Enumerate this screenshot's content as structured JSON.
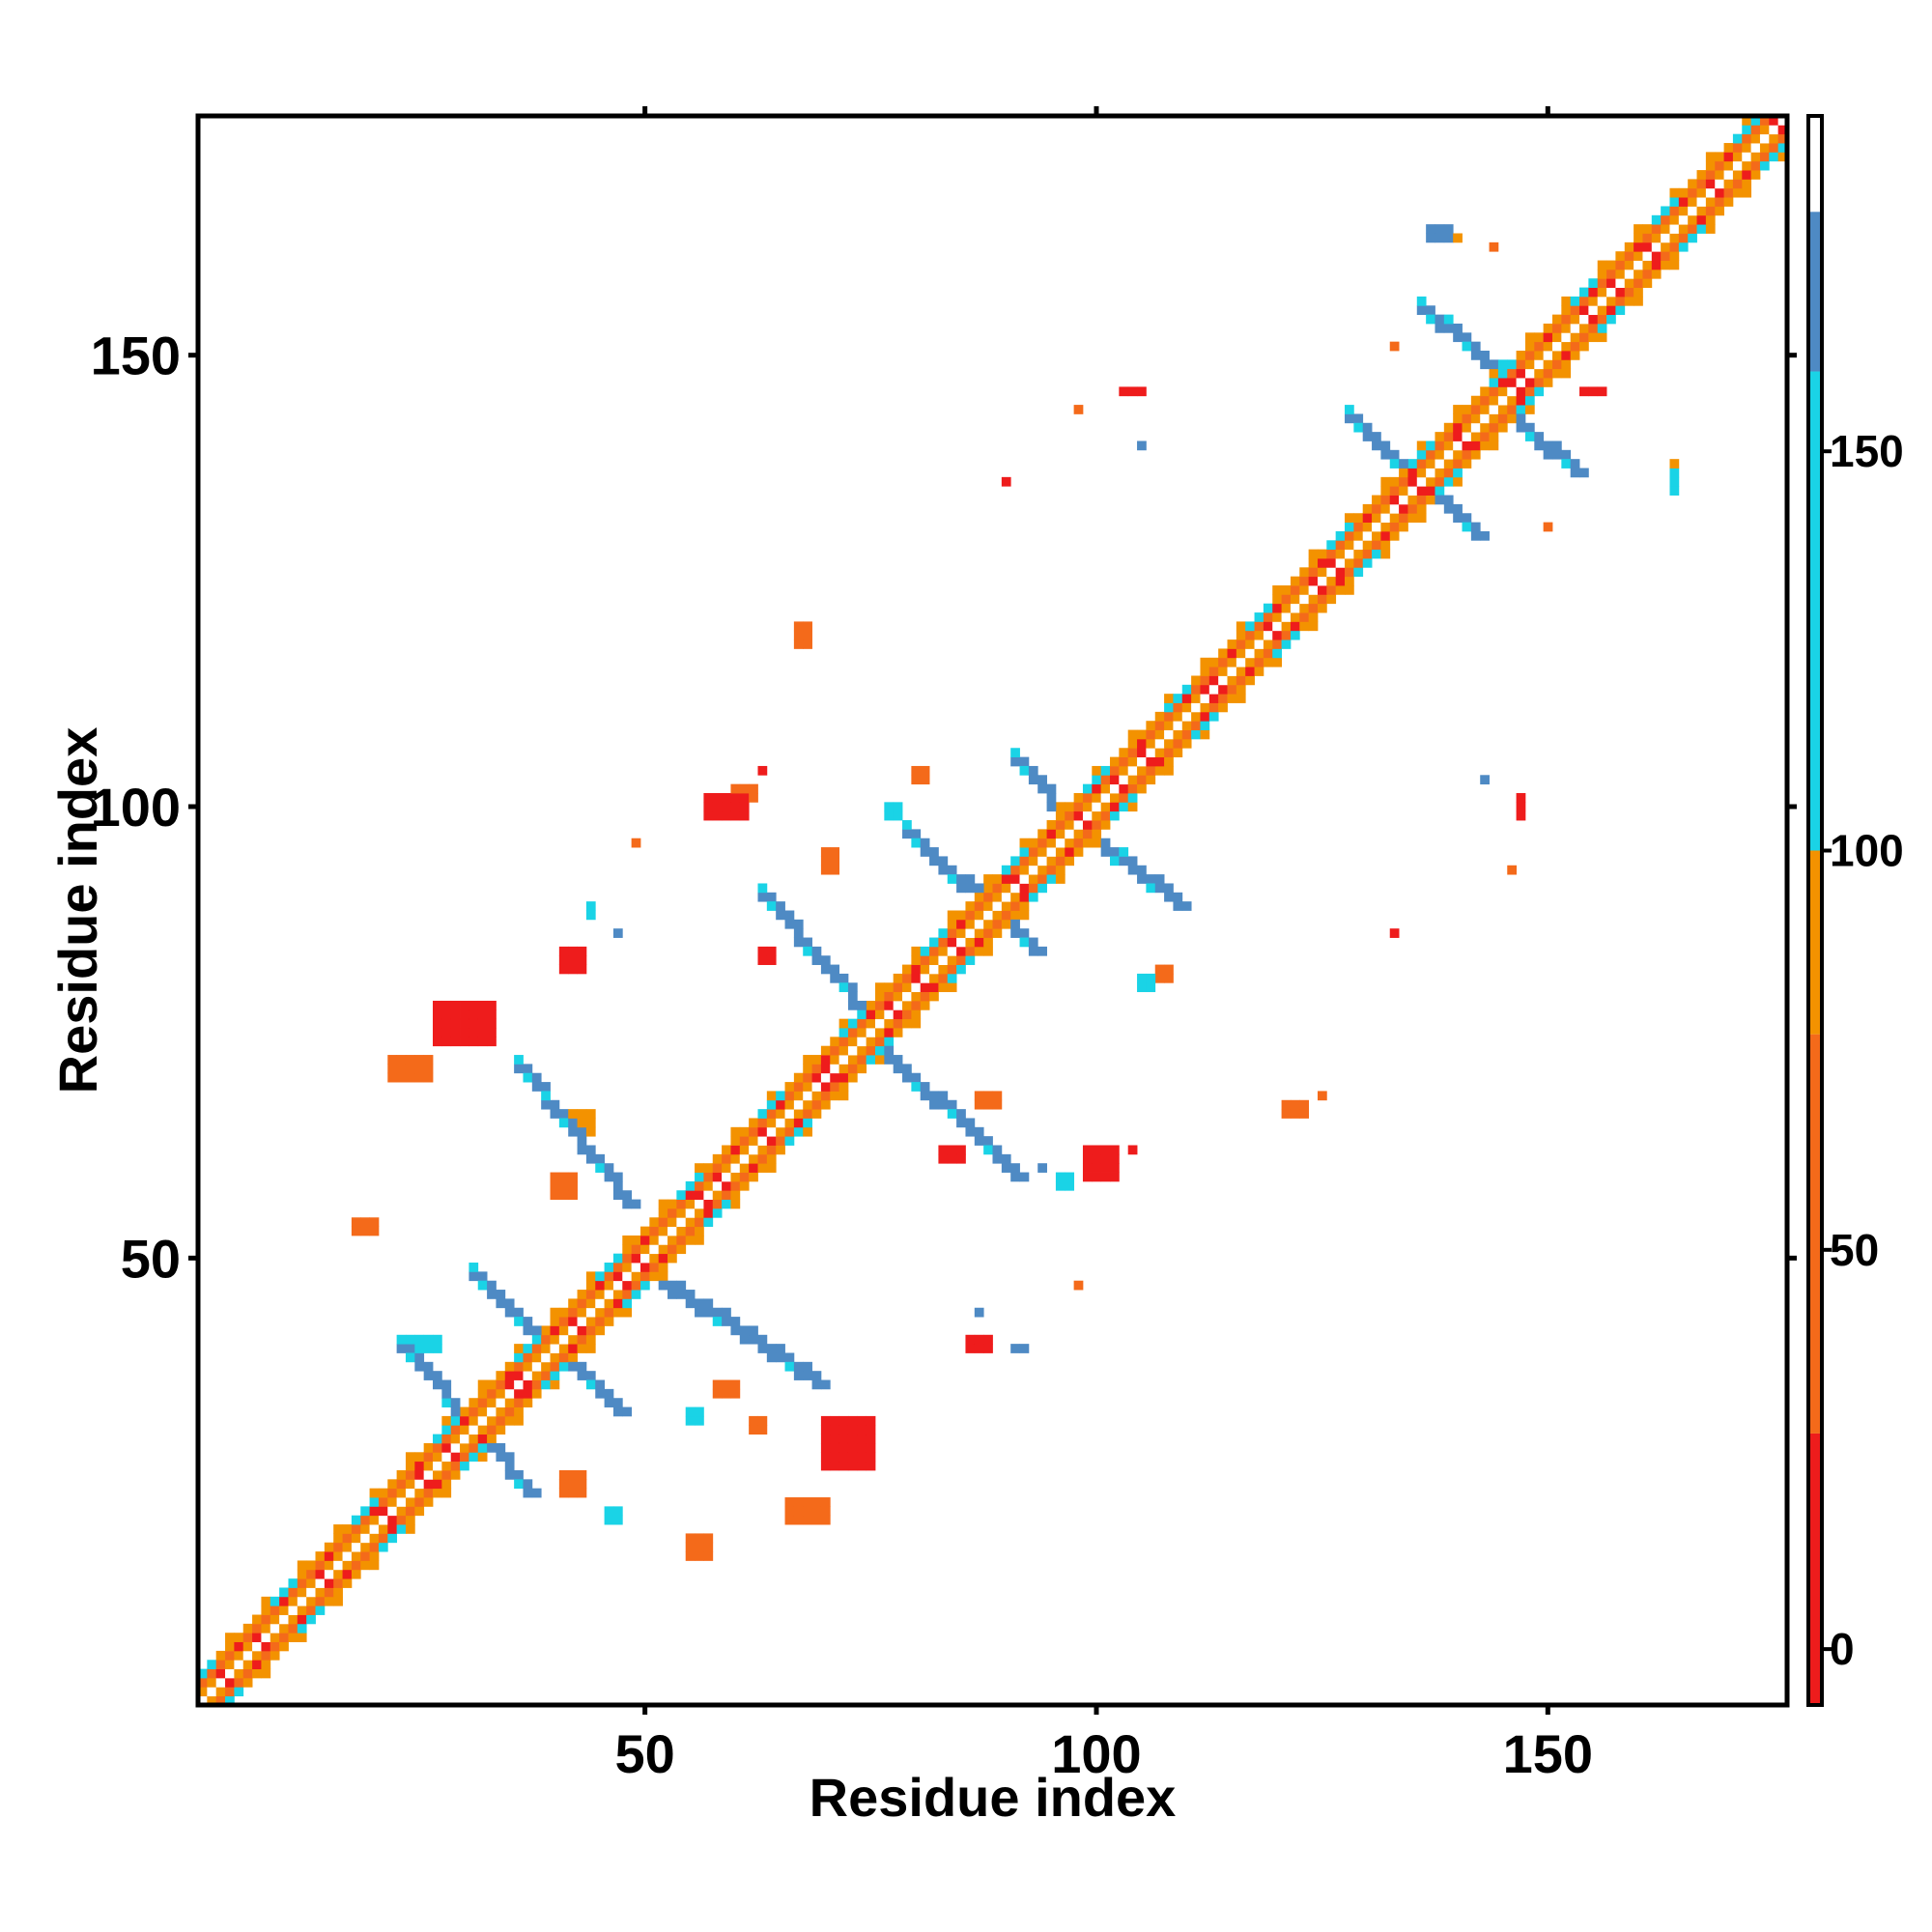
{
  "chart_data": {
    "type": "heatmap",
    "title": "",
    "xlabel": "Residue index",
    "ylabel": "Residue index",
    "xlim": [
      1,
      176
    ],
    "ylim": [
      1,
      176
    ],
    "x_ticks": [
      50,
      100,
      150
    ],
    "y_ticks": [
      50,
      100,
      150
    ],
    "colorbar": {
      "ticks": [
        0,
        50,
        100,
        150
      ],
      "range": [
        -7,
        192
      ],
      "bands": [
        {
          "from": -7,
          "to": 27,
          "color": "#ee1c1c"
        },
        {
          "from": 27,
          "to": 77,
          "color": "#f46a1a"
        },
        {
          "from": 77,
          "to": 100,
          "color": "#f39200"
        },
        {
          "from": 100,
          "to": 160,
          "color": "#1ad3e6"
        },
        {
          "from": 160,
          "to": 180,
          "color": "#4e8ac4"
        },
        {
          "from": 180,
          "to": 192,
          "color": "#ffffff"
        }
      ]
    },
    "cell_colors": {
      "red": "#ee1c1c",
      "orange_red": "#f46a1a",
      "orange": "#f39200",
      "cyan": "#1ad3e6",
      "blue": "#4e8ac4"
    },
    "diagonal": {
      "from": 1,
      "to": 176
    },
    "strands": [
      {
        "i0": 23,
        "i1": 31,
        "j0": 40,
        "j1": 31,
        "color": "blue"
      },
      {
        "i0": 31,
        "i1": 37,
        "j0": 31,
        "j1": 24,
        "color": "blue"
      },
      {
        "i0": 31,
        "i1": 47,
        "j0": 48,
        "j1": 33,
        "color": "blue"
      },
      {
        "i0": 36,
        "i1": 48,
        "j0": 71,
        "j1": 56,
        "color": "blue"
      },
      {
        "i0": 49,
        "i1": 69,
        "j0": 49,
        "j1": 36,
        "color": "blue"
      },
      {
        "i0": 63,
        "i1": 75,
        "j0": 90,
        "j1": 76,
        "color": "blue"
      },
      {
        "i0": 75,
        "i1": 91,
        "j0": 74,
        "j1": 59,
        "color": "blue"
      },
      {
        "i0": 79,
        "i1": 93,
        "j0": 97,
        "j1": 84,
        "color": "blue"
      },
      {
        "i0": 91,
        "i1": 97,
        "j0": 105,
        "j1": 98,
        "color": "blue"
      },
      {
        "i0": 97,
        "i1": 109,
        "j0": 98,
        "j1": 89,
        "color": "blue"
      },
      {
        "i0": 128,
        "i1": 142,
        "j0": 143,
        "j1": 130,
        "color": "blue"
      },
      {
        "i0": 136,
        "i1": 147,
        "j0": 155,
        "j1": 146,
        "color": "blue"
      },
      {
        "i0": 143,
        "i1": 153,
        "j0": 145,
        "j1": 137,
        "color": "blue"
      }
    ],
    "patches": [
      {
        "x": 27,
        "y": 74,
        "dx": 7,
        "dy": 5,
        "color": "red"
      },
      {
        "x": 22,
        "y": 70,
        "dx": 5,
        "dy": 3,
        "color": "orange_red"
      },
      {
        "x": 18,
        "y": 53,
        "dx": 3,
        "dy": 2,
        "color": "orange_red"
      },
      {
        "x": 70,
        "y": 27,
        "dx": 6,
        "dy": 6,
        "color": "red"
      },
      {
        "x": 66,
        "y": 21,
        "dx": 5,
        "dy": 3,
        "color": "orange_red"
      },
      {
        "x": 57,
        "y": 99,
        "dx": 5,
        "dy": 3,
        "color": "red"
      },
      {
        "x": 60,
        "y": 101,
        "dx": 3,
        "dy": 2,
        "color": "orange_red"
      },
      {
        "x": 67,
        "y": 118,
        "dx": 2,
        "dy": 3,
        "color": "orange_red"
      },
      {
        "x": 99,
        "y": 59,
        "dx": 4,
        "dy": 4,
        "color": "red"
      },
      {
        "x": 83,
        "y": 61,
        "dx": 3,
        "dy": 2,
        "color": "red"
      },
      {
        "x": 86,
        "y": 40,
        "dx": 3,
        "dy": 2,
        "color": "red"
      },
      {
        "x": 55,
        "y": 17,
        "dx": 3,
        "dy": 3,
        "color": "orange_red"
      },
      {
        "x": 41,
        "y": 82,
        "dx": 3,
        "dy": 3,
        "color": "red"
      },
      {
        "x": 40,
        "y": 57,
        "dx": 3,
        "dy": 3,
        "color": "orange_red"
      },
      {
        "x": 41,
        "y": 24,
        "dx": 3,
        "dy": 3,
        "color": "orange_red"
      },
      {
        "x": 42,
        "y": 64,
        "dx": 3,
        "dy": 3,
        "color": "orange"
      },
      {
        "x": 24,
        "y": 40,
        "dx": 4,
        "dy": 2,
        "color": "cyan"
      },
      {
        "x": 58,
        "y": 35,
        "dx": 3,
        "dy": 2,
        "color": "orange_red"
      },
      {
        "x": 87,
        "y": 67,
        "dx": 3,
        "dy": 2,
        "color": "orange_red"
      },
      {
        "x": 107,
        "y": 81,
        "dx": 2,
        "dy": 2,
        "color": "orange_red"
      },
      {
        "x": 105,
        "y": 80,
        "dx": 2,
        "dy": 2,
        "color": "cyan"
      },
      {
        "x": 121,
        "y": 66,
        "dx": 3,
        "dy": 2,
        "color": "orange_red"
      },
      {
        "x": 147,
        "y": 99,
        "dx": 1,
        "dy": 3,
        "color": "red"
      },
      {
        "x": 143,
        "y": 103,
        "dx": 1,
        "dy": 1,
        "color": "blue"
      },
      {
        "x": 154,
        "y": 146,
        "dx": 3,
        "dy": 1,
        "color": "red"
      },
      {
        "x": 137,
        "y": 163,
        "dx": 3,
        "dy": 2,
        "color": "blue"
      },
      {
        "x": 140,
        "y": 163,
        "dx": 1,
        "dy": 1,
        "color": "orange"
      },
      {
        "x": 144,
        "y": 162,
        "dx": 1,
        "dy": 1,
        "color": "orange_red"
      },
      {
        "x": 164,
        "y": 135,
        "dx": 1,
        "dy": 3,
        "color": "cyan"
      },
      {
        "x": 164,
        "y": 138,
        "dx": 1,
        "dy": 1,
        "color": "orange"
      },
      {
        "x": 70,
        "y": 93,
        "dx": 2,
        "dy": 3,
        "color": "orange_red"
      },
      {
        "x": 44,
        "y": 88,
        "dx": 1,
        "dy": 2,
        "color": "cyan"
      },
      {
        "x": 47,
        "y": 86,
        "dx": 1,
        "dy": 1,
        "color": "blue"
      },
      {
        "x": 91,
        "y": 40,
        "dx": 2,
        "dy": 1,
        "color": "blue"
      },
      {
        "x": 87,
        "y": 44,
        "dx": 1,
        "dy": 1,
        "color": "blue"
      },
      {
        "x": 96,
        "y": 58,
        "dx": 2,
        "dy": 2,
        "color": "cyan"
      },
      {
        "x": 94,
        "y": 60,
        "dx": 1,
        "dy": 1,
        "color": "blue"
      },
      {
        "x": 104,
        "y": 62,
        "dx": 1,
        "dy": 1,
        "color": "red"
      },
      {
        "x": 98,
        "y": 144,
        "dx": 1,
        "dy": 1,
        "color": "orange_red"
      },
      {
        "x": 105,
        "y": 140,
        "dx": 1,
        "dy": 1,
        "color": "blue"
      },
      {
        "x": 103,
        "y": 146,
        "dx": 3,
        "dy": 1,
        "color": "red"
      },
      {
        "x": 98,
        "y": 47,
        "dx": 1,
        "dy": 1,
        "color": "orange_red"
      },
      {
        "x": 63,
        "y": 104,
        "dx": 1,
        "dy": 1,
        "color": "red"
      },
      {
        "x": 49,
        "y": 96,
        "dx": 1,
        "dy": 1,
        "color": "orange_red"
      },
      {
        "x": 77,
        "y": 99,
        "dx": 2,
        "dy": 2,
        "color": "cyan"
      },
      {
        "x": 80,
        "y": 103,
        "dx": 2,
        "dy": 2,
        "color": "orange_red"
      },
      {
        "x": 55,
        "y": 32,
        "dx": 2,
        "dy": 2,
        "color": "cyan"
      },
      {
        "x": 62,
        "y": 31,
        "dx": 2,
        "dy": 2,
        "color": "orange_red"
      },
      {
        "x": 46,
        "y": 21,
        "dx": 2,
        "dy": 2,
        "color": "cyan"
      },
      {
        "x": 63,
        "y": 83,
        "dx": 2,
        "dy": 2,
        "color": "red"
      },
      {
        "x": 125,
        "y": 68,
        "dx": 1,
        "dy": 1,
        "color": "orange_red"
      },
      {
        "x": 133,
        "y": 86,
        "dx": 1,
        "dy": 1,
        "color": "red"
      },
      {
        "x": 146,
        "y": 93,
        "dx": 1,
        "dy": 1,
        "color": "orange_red"
      },
      {
        "x": 150,
        "y": 131,
        "dx": 1,
        "dy": 1,
        "color": "orange_red"
      },
      {
        "x": 133,
        "y": 151,
        "dx": 1,
        "dy": 1,
        "color": "orange_red"
      },
      {
        "x": 90,
        "y": 136,
        "dx": 1,
        "dy": 1,
        "color": "red"
      }
    ]
  }
}
